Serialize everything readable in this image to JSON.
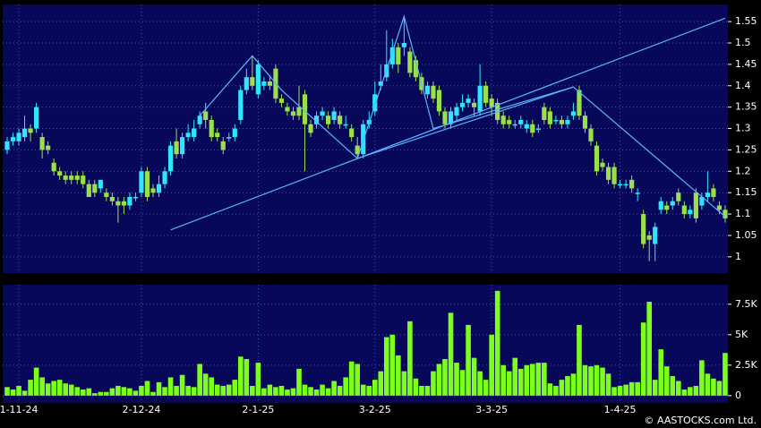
{
  "chart_data": [
    {
      "type": "candlestick",
      "up_color": "#2ee6ff",
      "down_color": "#9be04a",
      "trend_color": "#5ab4ff",
      "ylim": [
        0.962,
        1.59
      ],
      "yticks": [
        1,
        1.05,
        1.1,
        1.15,
        1.2,
        1.25,
        1.3,
        1.35,
        1.4,
        1.45,
        1.5,
        1.55
      ],
      "grid": true,
      "open": [
        1.25,
        1.27,
        1.27,
        1.28,
        1.3,
        1.3,
        1.28,
        1.26,
        1.22,
        1.2,
        1.19,
        1.19,
        1.19,
        1.19,
        1.17,
        1.17,
        1.16,
        1.15,
        1.14,
        1.13,
        1.13,
        1.12,
        1.14,
        1.15,
        1.2,
        1.16,
        1.15,
        1.17,
        1.2,
        1.27,
        1.24,
        1.28,
        1.28,
        1.31,
        1.34,
        1.32,
        1.29,
        1.27,
        1.28,
        1.28,
        1.32,
        1.39,
        1.42,
        1.38,
        1.4,
        1.41,
        1.44,
        1.37,
        1.35,
        1.34,
        1.35,
        1.38,
        1.31,
        1.31,
        1.33,
        1.33,
        1.32,
        1.33,
        1.31,
        1.3,
        1.26,
        1.24,
        1.31,
        1.34,
        1.4,
        1.42,
        1.45,
        1.49,
        1.49,
        1.48,
        1.46,
        1.42,
        1.38,
        1.4,
        1.39,
        1.34,
        1.31,
        1.33,
        1.35,
        1.36,
        1.36,
        1.34,
        1.4,
        1.37,
        1.36,
        1.33,
        1.32,
        1.31,
        1.31,
        1.3,
        1.31,
        1.3,
        1.35,
        1.34,
        1.32,
        1.32,
        1.31,
        1.33,
        1.39,
        1.33,
        1.3,
        1.26,
        1.22,
        1.21,
        1.21,
        1.17,
        1.17,
        1.18,
        1.15,
        1.1,
        1.05,
        1.03,
        1.11,
        1.12,
        1.12,
        1.15,
        1.12,
        1.1,
        1.15,
        1.12,
        1.14,
        1.16,
        1.12,
        1.11
      ],
      "high": [
        1.28,
        1.29,
        1.3,
        1.33,
        1.31,
        1.36,
        1.29,
        1.27,
        1.23,
        1.21,
        1.2,
        1.2,
        1.2,
        1.2,
        1.18,
        1.18,
        1.18,
        1.16,
        1.15,
        1.14,
        1.14,
        1.15,
        1.15,
        1.21,
        1.21,
        1.17,
        1.19,
        1.21,
        1.27,
        1.3,
        1.29,
        1.31,
        1.32,
        1.34,
        1.36,
        1.33,
        1.3,
        1.28,
        1.29,
        1.31,
        1.4,
        1.44,
        1.47,
        1.46,
        1.42,
        1.42,
        1.45,
        1.38,
        1.36,
        1.35,
        1.4,
        1.39,
        1.32,
        1.34,
        1.35,
        1.34,
        1.35,
        1.34,
        1.33,
        1.31,
        1.28,
        1.32,
        1.34,
        1.41,
        1.45,
        1.53,
        1.51,
        1.5,
        1.56,
        1.49,
        1.47,
        1.43,
        1.41,
        1.41,
        1.4,
        1.35,
        1.35,
        1.36,
        1.38,
        1.38,
        1.37,
        1.45,
        1.41,
        1.38,
        1.37,
        1.34,
        1.33,
        1.32,
        1.33,
        1.32,
        1.32,
        1.31,
        1.36,
        1.35,
        1.33,
        1.33,
        1.33,
        1.36,
        1.4,
        1.34,
        1.31,
        1.27,
        1.23,
        1.22,
        1.22,
        1.18,
        1.18,
        1.19,
        1.16,
        1.11,
        1.06,
        1.08,
        1.14,
        1.13,
        1.14,
        1.16,
        1.13,
        1.12,
        1.16,
        1.15,
        1.2,
        1.17,
        1.13,
        1.12
      ],
      "low": [
        1.24,
        1.26,
        1.26,
        1.27,
        1.27,
        1.29,
        1.23,
        1.24,
        1.19,
        1.18,
        1.17,
        1.17,
        1.17,
        1.16,
        1.14,
        1.14,
        1.15,
        1.13,
        1.12,
        1.08,
        1.1,
        1.11,
        1.13,
        1.14,
        1.13,
        1.14,
        1.14,
        1.16,
        1.19,
        1.23,
        1.23,
        1.27,
        1.27,
        1.3,
        1.3,
        1.27,
        1.27,
        1.24,
        1.27,
        1.27,
        1.31,
        1.38,
        1.39,
        1.37,
        1.39,
        1.39,
        1.36,
        1.35,
        1.33,
        1.32,
        1.32,
        1.2,
        1.28,
        1.3,
        1.32,
        1.3,
        1.31,
        1.3,
        1.3,
        1.27,
        1.23,
        1.23,
        1.3,
        1.33,
        1.39,
        1.41,
        1.44,
        1.43,
        1.47,
        1.42,
        1.41,
        1.38,
        1.37,
        1.36,
        1.33,
        1.3,
        1.3,
        1.32,
        1.34,
        1.35,
        1.33,
        1.33,
        1.35,
        1.33,
        1.31,
        1.3,
        1.3,
        1.3,
        1.3,
        1.29,
        1.28,
        1.29,
        1.31,
        1.3,
        1.31,
        1.3,
        1.3,
        1.32,
        1.32,
        1.29,
        1.26,
        1.19,
        1.2,
        1.17,
        1.16,
        1.16,
        1.16,
        1.15,
        1.13,
        1.02,
        0.99,
        0.99,
        1.1,
        1.1,
        1.11,
        1.12,
        1.09,
        1.09,
        1.08,
        1.11,
        1.13,
        1.13,
        1.1,
        1.08
      ],
      "close": [
        1.27,
        1.28,
        1.29,
        1.3,
        1.29,
        1.35,
        1.25,
        1.25,
        1.2,
        1.19,
        1.18,
        1.18,
        1.18,
        1.17,
        1.14,
        1.15,
        1.18,
        1.14,
        1.13,
        1.12,
        1.12,
        1.14,
        1.14,
        1.2,
        1.14,
        1.15,
        1.17,
        1.2,
        1.26,
        1.24,
        1.28,
        1.29,
        1.3,
        1.33,
        1.32,
        1.28,
        1.28,
        1.25,
        1.28,
        1.3,
        1.39,
        1.42,
        1.4,
        1.45,
        1.41,
        1.4,
        1.37,
        1.36,
        1.34,
        1.33,
        1.33,
        1.31,
        1.29,
        1.33,
        1.34,
        1.31,
        1.34,
        1.31,
        1.31,
        1.28,
        1.24,
        1.31,
        1.32,
        1.38,
        1.41,
        1.45,
        1.49,
        1.45,
        1.5,
        1.43,
        1.42,
        1.39,
        1.4,
        1.37,
        1.34,
        1.31,
        1.34,
        1.35,
        1.36,
        1.37,
        1.35,
        1.4,
        1.36,
        1.35,
        1.32,
        1.31,
        1.31,
        1.31,
        1.32,
        1.31,
        1.29,
        1.3,
        1.32,
        1.31,
        1.32,
        1.31,
        1.32,
        1.34,
        1.33,
        1.3,
        1.27,
        1.2,
        1.21,
        1.18,
        1.17,
        1.17,
        1.17,
        1.16,
        1.15,
        1.03,
        1.04,
        1.07,
        1.13,
        1.11,
        1.13,
        1.13,
        1.1,
        1.11,
        1.09,
        1.14,
        1.15,
        1.14,
        1.11,
        1.09
      ],
      "trend_lines": [
        {
          "points": [
            [
              28,
              1.063
            ],
            [
              123,
              1.558
            ]
          ]
        },
        {
          "points": [
            [
              33,
              1.33
            ],
            [
              42,
              1.47
            ],
            [
              47,
              1.39
            ],
            [
              60,
              1.23
            ],
            [
              68,
              1.562
            ],
            [
              73,
              1.3
            ],
            [
              97,
              1.397
            ],
            [
              123,
              1.094
            ]
          ]
        },
        {
          "points": [
            [
              60,
              1.23
            ],
            [
              97,
              1.397
            ]
          ]
        }
      ]
    },
    {
      "type": "bar",
      "color": "#7dff1e",
      "ylim": [
        -600,
        9100
      ],
      "yticks": [
        0,
        {
          "value": 2500,
          "label": "2.5K"
        },
        {
          "value": 5000,
          "label": "5K"
        },
        {
          "value": 7500,
          "label": "7.5K"
        }
      ],
      "grid": true,
      "categories": [
        null,
        null,
        "1-11-24",
        null,
        null,
        null,
        null,
        null,
        null,
        null,
        null,
        null,
        null,
        null,
        null,
        null,
        null,
        null,
        null,
        null,
        null,
        null,
        null,
        "2-12-24",
        null,
        null,
        null,
        null,
        null,
        null,
        null,
        null,
        null,
        null,
        null,
        null,
        null,
        null,
        null,
        null,
        null,
        null,
        null,
        "2-1-25",
        null,
        null,
        null,
        null,
        null,
        null,
        null,
        null,
        null,
        null,
        null,
        null,
        null,
        null,
        null,
        null,
        null,
        null,
        null,
        "3-2-25",
        null,
        null,
        null,
        null,
        null,
        null,
        null,
        null,
        null,
        null,
        null,
        null,
        null,
        null,
        null,
        null,
        null,
        null,
        null,
        "3-3-25",
        null,
        null,
        null,
        null,
        null,
        null,
        null,
        null,
        null,
        null,
        null,
        null,
        null,
        null,
        null,
        null,
        null,
        null,
        null,
        null,
        null,
        "1-4-25",
        null,
        null,
        null,
        null,
        null,
        null,
        null,
        null,
        null,
        null,
        null,
        null,
        null,
        null,
        null,
        null,
        null,
        null
      ],
      "values": [
        700,
        500,
        800,
        400,
        1300,
        2300,
        1500,
        1000,
        1200,
        1300,
        1000,
        900,
        700,
        500,
        600,
        200,
        300,
        300,
        600,
        800,
        700,
        600,
        400,
        800,
        1200,
        300,
        1100,
        700,
        1500,
        800,
        1700,
        800,
        700,
        2600,
        1800,
        1500,
        900,
        800,
        900,
        1300,
        3200,
        3000,
        800,
        2700,
        600,
        900,
        700,
        800,
        500,
        600,
        2200,
        900,
        700,
        500,
        900,
        600,
        1200,
        800,
        1500,
        2800,
        2600,
        900,
        800,
        1300,
        2000,
        4800,
        5000,
        3300,
        2000,
        6100,
        1400,
        800,
        800,
        2000,
        2600,
        3000,
        6800,
        2700,
        2100,
        5800,
        3100,
        2000,
        1300,
        5000,
        8600,
        2500,
        2000,
        3100,
        2200,
        2500,
        2600,
        2700,
        2700,
        1000,
        800,
        1300,
        1600,
        1800,
        5800,
        2500,
        2400,
        2500,
        2300,
        1800,
        700,
        800,
        900,
        1100,
        1100,
        6000,
        7700,
        1300,
        3800,
        2400,
        1600,
        1200,
        500,
        700,
        800,
        2900,
        1800,
        1400,
        1200,
        3500
      ]
    }
  ],
  "watermark": "© AASTOCKS.com Ltd."
}
